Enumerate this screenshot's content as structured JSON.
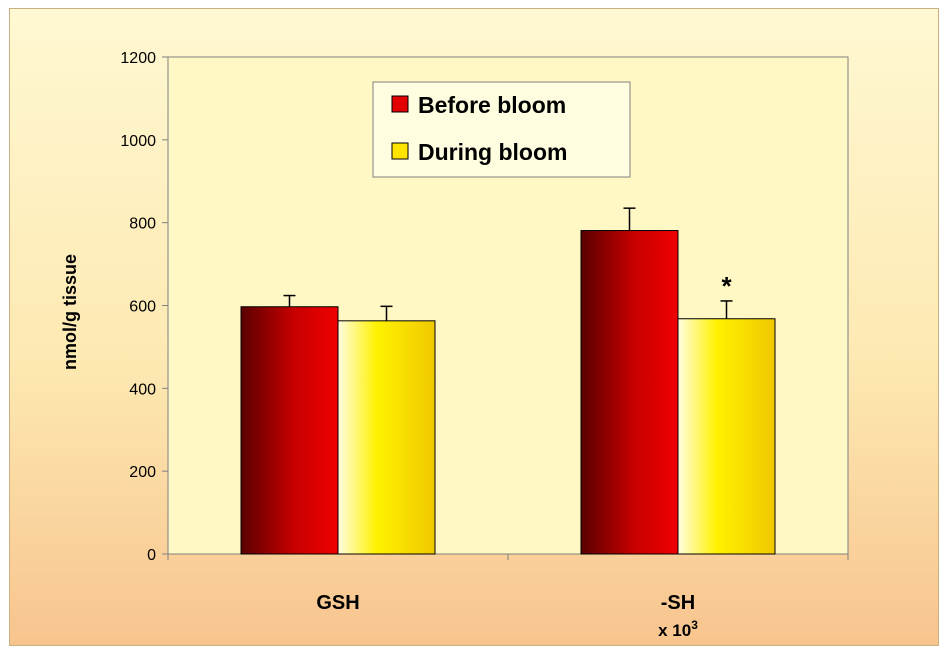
{
  "colors": {
    "before": "#e00000",
    "during": "#ffe400",
    "plot_bg": "#fff7c4",
    "axis": "#808080"
  },
  "chart_data": {
    "type": "bar",
    "categories": [
      "GSH",
      "-SH"
    ],
    "category_sublabels": [
      "",
      "x 10"
    ],
    "category_sublabel_superscripts": [
      "",
      "3"
    ],
    "series": [
      {
        "name": "Before bloom",
        "values": [
          597,
          781
        ],
        "errors": [
          27,
          54
        ]
      },
      {
        "name": "During bloom",
        "values": [
          563,
          568
        ],
        "errors": [
          35,
          43
        ]
      }
    ],
    "annotations": [
      {
        "text": "*",
        "category": "-SH",
        "series": "During bloom"
      }
    ],
    "xlabel": "",
    "ylabel": "nmol/g tissue",
    "ylim": [
      0,
      1200
    ],
    "yticks": [
      0,
      200,
      400,
      600,
      800,
      1000,
      1200
    ],
    "legend_position": "top-center",
    "grid": false
  }
}
